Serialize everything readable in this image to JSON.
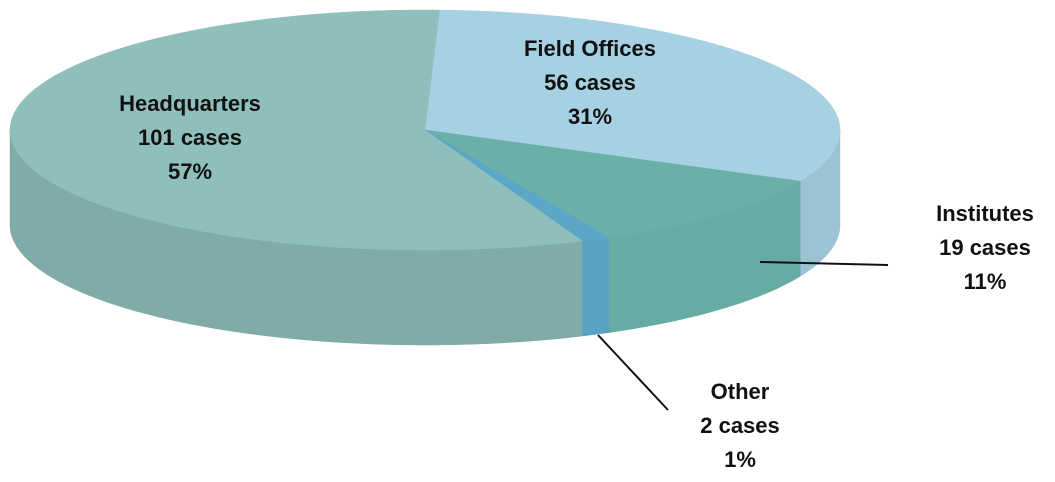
{
  "chart_data": {
    "type": "pie3d",
    "categories": [
      "Field Offices",
      "Institutes",
      "Other",
      "Headquarters"
    ],
    "values": [
      56,
      19,
      2,
      101
    ],
    "value_labels": [
      "56 cases",
      "19 cases",
      "2 cases",
      "101 cases"
    ],
    "percents": [
      31,
      11,
      1,
      57
    ],
    "percent_labels": [
      "31%",
      "11%",
      "1%",
      "57%"
    ],
    "colors": [
      "#a6d1e3",
      "#6aafa8",
      "#5aa7c8",
      "#8fbfbc"
    ],
    "side_colors": [
      "#9cc3d4",
      "#66aba4",
      "#58a3c2",
      "#80aba8"
    ]
  }
}
